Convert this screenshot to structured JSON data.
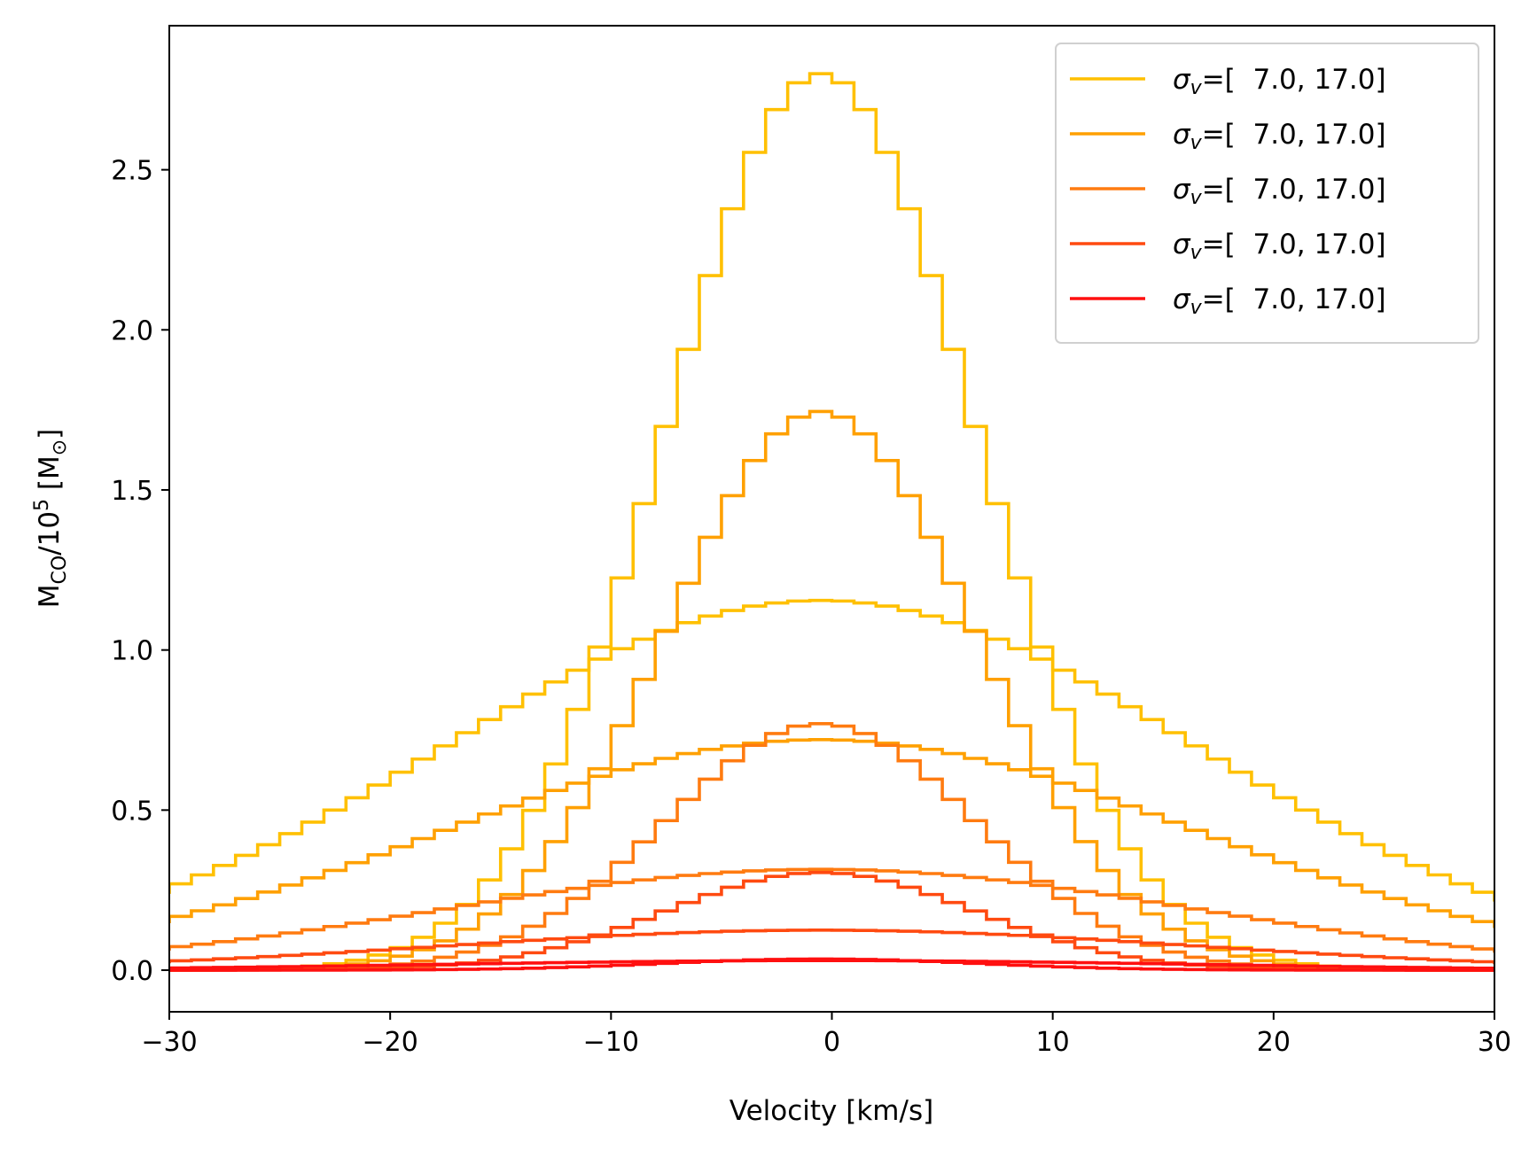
{
  "chart_data": {
    "type": "line",
    "xlabel": "Velocity [km/s]",
    "ylabel": "M_CO/10^5 [M_⊙]",
    "xlim": [
      -30,
      30
    ],
    "ylim": [
      -0.13,
      2.95
    ],
    "xticks": [
      -30,
      -20,
      -10,
      0,
      10,
      20,
      30
    ],
    "xtick_labels": [
      "−30",
      "−20",
      "−10",
      "0",
      "10",
      "20",
      "30"
    ],
    "yticks": [
      0.0,
      0.5,
      1.0,
      1.5,
      2.0,
      2.5
    ],
    "ytick_labels": [
      "0.0",
      "0.5",
      "1.0",
      "1.5",
      "2.0",
      "2.5"
    ],
    "grid": false,
    "legend_position": "top-right",
    "step_style": "histogram, bin width 1 km/s, centered near -0.5 km/s",
    "series": [
      {
        "name": "σv=[  7.0, 17.0]",
        "color": "#ffc000",
        "sigma": 7.0,
        "peak": 2.8,
        "center": -0.5
      },
      {
        "name": "σv=[  7.0, 17.0]",
        "color": "#ffc000",
        "sigma": 17.0,
        "peak": 1.155,
        "center": -0.5
      },
      {
        "name": "σv=[  7.0, 17.0]",
        "color": "#ffa000",
        "sigma": 7.0,
        "peak": 1.745,
        "center": -0.5
      },
      {
        "name": "σv=[  7.0, 17.0]",
        "color": "#ffa000",
        "sigma": 17.0,
        "peak": 0.72,
        "center": -0.5
      },
      {
        "name": "σv=[  7.0, 17.0]",
        "color": "#ff7b10",
        "sigma": 7.0,
        "peak": 0.77,
        "center": -0.5
      },
      {
        "name": "σv=[  7.0, 17.0]",
        "color": "#ff7b10",
        "sigma": 17.0,
        "peak": 0.315,
        "center": -0.5
      },
      {
        "name": "σv=[  7.0, 17.0]",
        "color": "#ff4a10",
        "sigma": 7.0,
        "peak": 0.305,
        "center": -0.5
      },
      {
        "name": "σv=[  7.0, 17.0]",
        "color": "#ff4a10",
        "sigma": 17.0,
        "peak": 0.125,
        "center": -0.5
      },
      {
        "name": "σv=[  7.0, 17.0]",
        "color": "#ff1010",
        "sigma": 7.0,
        "peak": 0.035,
        "center": -0.5
      },
      {
        "name": "σv=[  7.0, 17.0]",
        "color": "#ff1010",
        "sigma": 17.0,
        "peak": 0.03,
        "center": -0.5
      }
    ],
    "legend": [
      {
        "label_prefix": "σ",
        "label_sub": "v",
        "label_rest": "=[  7.0, 17.0]",
        "color": "#ffc000"
      },
      {
        "label_prefix": "σ",
        "label_sub": "v",
        "label_rest": "=[  7.0, 17.0]",
        "color": "#ffa000"
      },
      {
        "label_prefix": "σ",
        "label_sub": "v",
        "label_rest": "=[  7.0, 17.0]",
        "color": "#ff7b10"
      },
      {
        "label_prefix": "σ",
        "label_sub": "v",
        "label_rest": "=[  7.0, 17.0]",
        "color": "#ff4a10"
      },
      {
        "label_prefix": "σ",
        "label_sub": "v",
        "label_rest": "=[  7.0, 17.0]",
        "color": "#ff1010"
      }
    ]
  }
}
